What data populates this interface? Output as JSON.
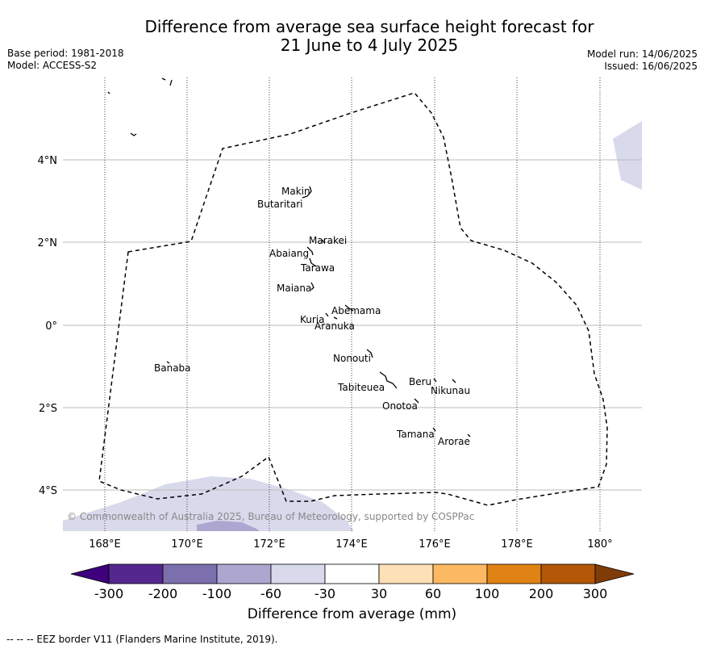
{
  "title_line1": "Difference from average sea surface height forecast for",
  "title_line2": "21 June to 4 July 2025",
  "base_period": "Base period: 1981-2018",
  "model": "Model: ACCESS-S2",
  "model_run": "Model run: 14/06/2025",
  "issued": "Issued: 16/06/2025",
  "lat_labels": [
    "4°N",
    "2°N",
    "0°",
    "2°S",
    "4°S"
  ],
  "lon_labels": [
    "168°E",
    "170°E",
    "172°E",
    "174°E",
    "176°E",
    "178°E",
    "180°"
  ],
  "places": [
    "Makin",
    "Butaritari",
    "Marakei",
    "Abaiang",
    "Tarawa",
    "Maiana",
    "Abemama",
    "Kuria",
    "Aranuka",
    "Nonouti",
    "Banaba",
    "Beru",
    "Nikunau",
    "Tabiteuea",
    "Onotoa",
    "Tamana",
    "Arorae"
  ],
  "copyright": "© Commonwealth of Australia 2025, Bureau of Meteorology, supported by COSPPac",
  "colorbar": {
    "ticks": [
      "-300",
      "-200",
      "-100",
      "-60",
      "-30",
      "30",
      "60",
      "100",
      "200",
      "300"
    ],
    "colors": [
      "#3f007d",
      "#54278f",
      "#7b6fad",
      "#aca6d0",
      "#d9d9ec",
      "#ffffff",
      "#fee0b6",
      "#fdb863",
      "#e08214",
      "#b35806",
      "#7f3b08"
    ],
    "label": "Difference from average (mm)"
  },
  "footer": "--  --  -- EEZ border V11 (Flanders Marine Institute, 2019)."
}
